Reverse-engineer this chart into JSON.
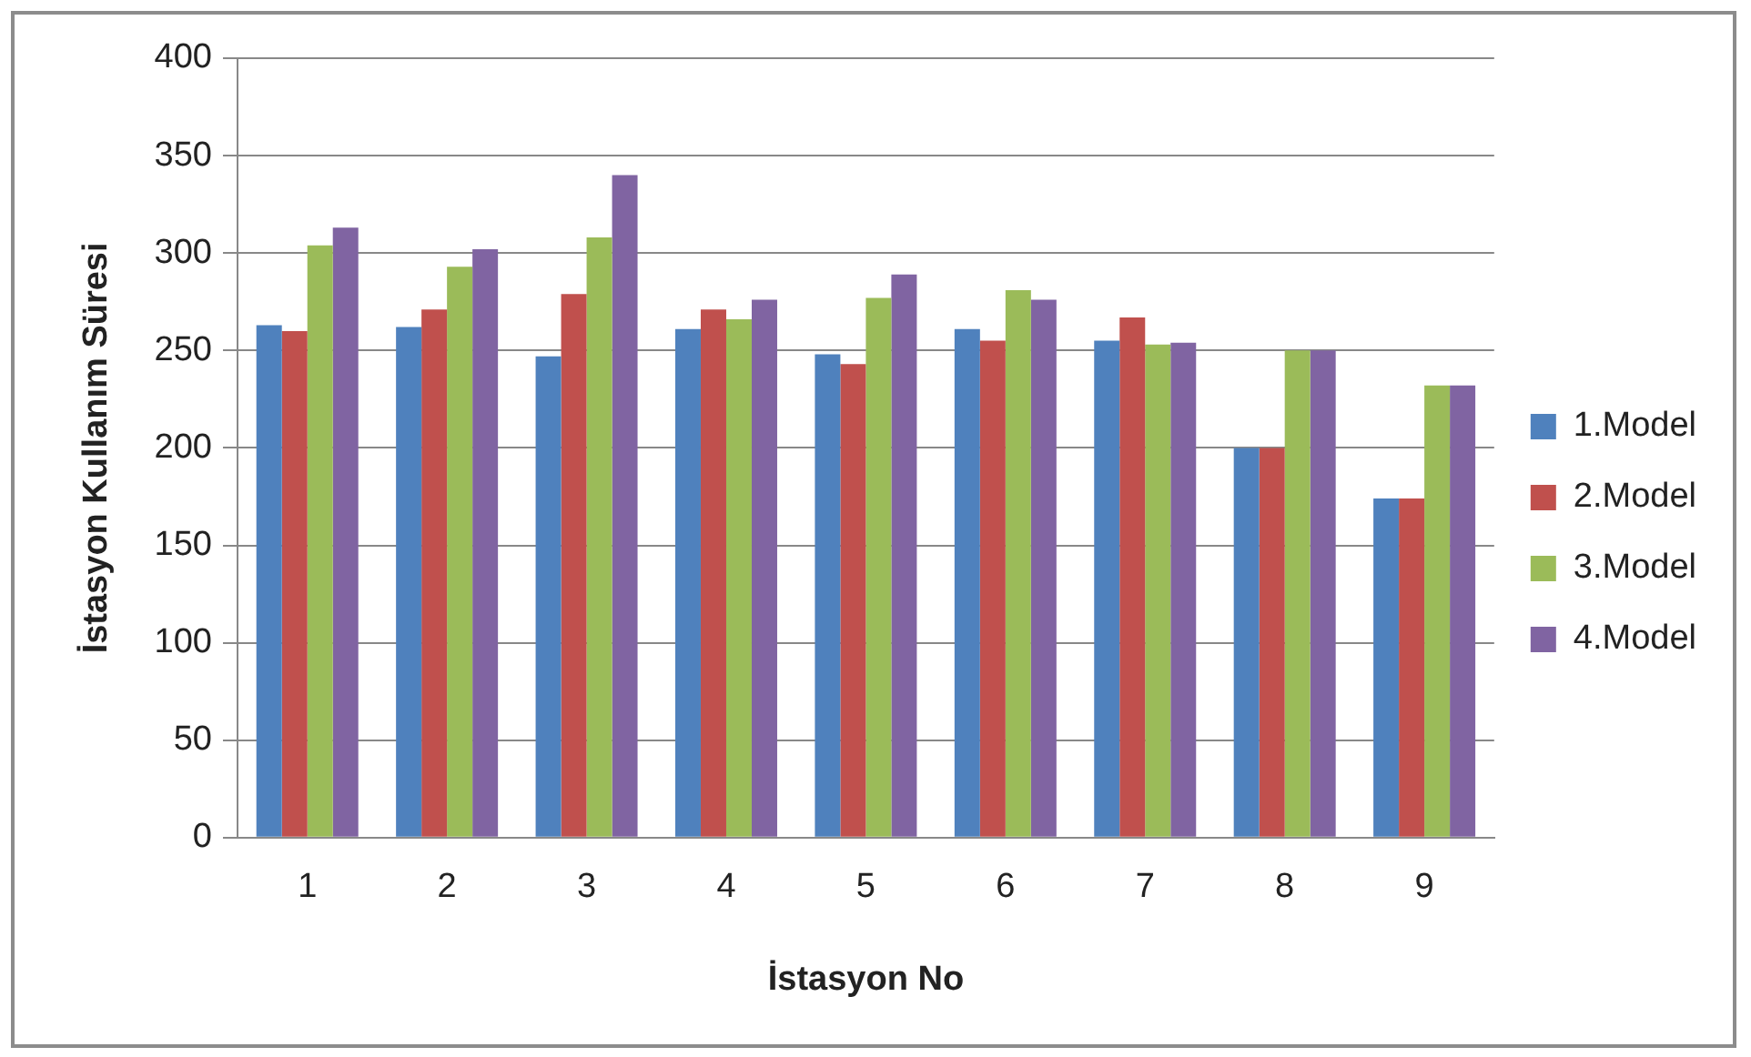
{
  "chart_data": {
    "type": "bar",
    "xlabel": "İstasyon No",
    "ylabel": "İstasyon Kullanım Süresi",
    "categories": [
      "1",
      "2",
      "3",
      "4",
      "5",
      "6",
      "7",
      "8",
      "9"
    ],
    "series": [
      {
        "name": "1.Model",
        "color": "#4f81bd",
        "values": [
          263,
          262,
          247,
          261,
          248,
          261,
          255,
          200,
          174
        ]
      },
      {
        "name": "2.Model",
        "color": "#c0504d",
        "values": [
          260,
          271,
          279,
          271,
          243,
          255,
          267,
          200,
          174
        ]
      },
      {
        "name": "3.Model",
        "color": "#9bbb59",
        "values": [
          304,
          293,
          308,
          266,
          277,
          281,
          253,
          250,
          232
        ]
      },
      {
        "name": "4.Model",
        "color": "#8064a2",
        "values": [
          313,
          302,
          340,
          276,
          289,
          276,
          254,
          250,
          232
        ]
      }
    ],
    "ylim": [
      0,
      400
    ],
    "yticks": [
      0,
      50,
      100,
      150,
      200,
      250,
      300,
      350,
      400
    ],
    "grid": "y",
    "legend": "right"
  }
}
